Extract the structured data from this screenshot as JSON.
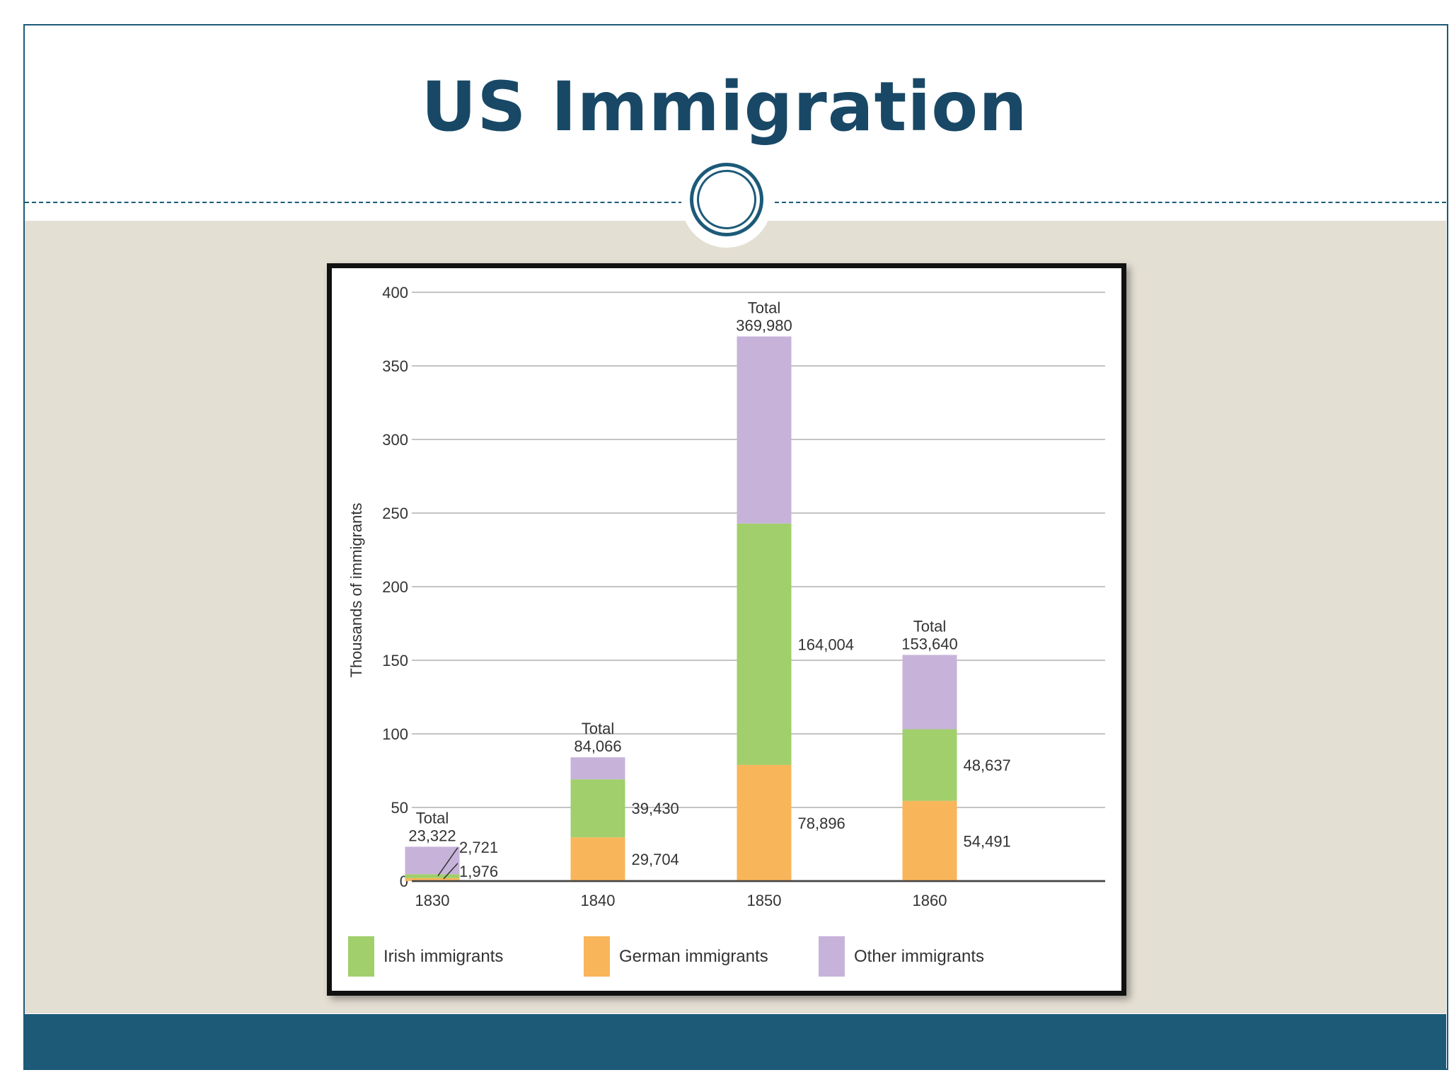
{
  "slide": {
    "title": "US Immigration",
    "colors": {
      "accent": "#1c5a78",
      "title": "#184866",
      "background": "#e4dfd3"
    }
  },
  "chart_data": {
    "type": "bar",
    "stacked": true,
    "ylabel": "Thousands of immigrants",
    "ylim": [
      0,
      400
    ],
    "yticks": [
      0,
      50,
      100,
      150,
      200,
      250,
      300,
      350,
      400
    ],
    "categories": [
      "1830",
      "1840",
      "1850",
      "1860"
    ],
    "series": [
      {
        "name": "German immigrants",
        "color": "#f9b55a",
        "values": [
          1.976,
          29.704,
          78.896,
          54.491
        ],
        "labels": [
          "1,976",
          "29,704",
          "78,896",
          "54,491"
        ]
      },
      {
        "name": "Irish immigrants",
        "color": "#a1cf6b",
        "values": [
          2.721,
          39.43,
          164.004,
          48.637
        ],
        "labels": [
          "2,721",
          "39,430",
          "164,004",
          "48,637"
        ]
      },
      {
        "name": "Other immigrants",
        "color": "#c7b3da",
        "values": [
          18.625,
          14.932,
          127.08,
          50.512
        ]
      }
    ],
    "totals": {
      "prefix": "Total",
      "values": [
        23.322,
        84.066,
        369.98,
        153.64
      ],
      "labels": [
        "23,322",
        "84,066",
        "369,980",
        "153,640"
      ]
    },
    "legend": {
      "placement": "bottom",
      "items": [
        {
          "label": "Irish immigrants",
          "color": "#a1cf6b"
        },
        {
          "label": "German immigrants",
          "color": "#f9b55a"
        },
        {
          "label": "Other immigrants",
          "color": "#c7b3da"
        }
      ]
    },
    "grid": true
  }
}
